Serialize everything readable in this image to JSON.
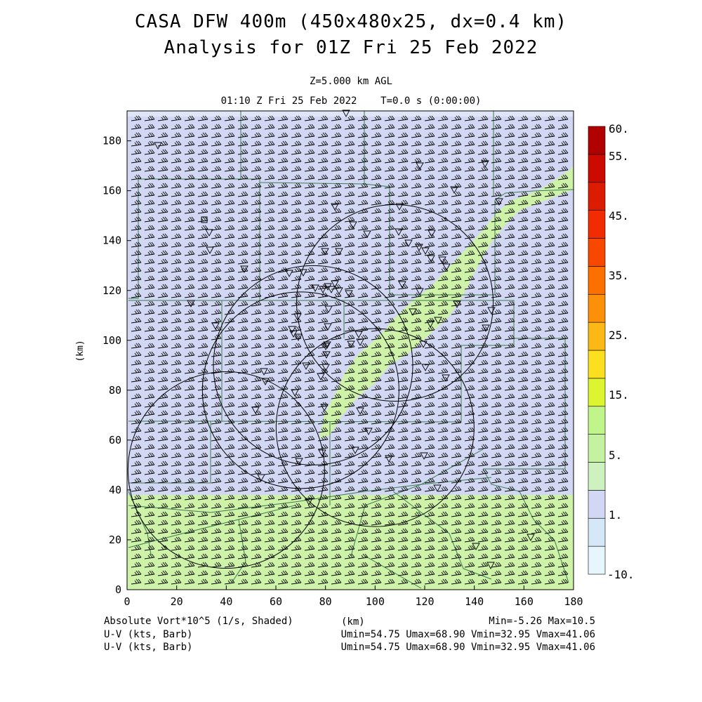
{
  "title_line1": "CASA DFW 400m (450x480x25, dx=0.4 km)",
  "title_line2": "Analysis for 01Z Fri 25 Feb 2022",
  "level_label": "Z=5.000 km AGL",
  "time_label": "01:10 Z Fri 25 Feb 2022    T=0.0 s (0:00:00)",
  "chart_data": {
    "type": "heatmap",
    "xlabel": "(km)",
    "ylabel": "(km)",
    "xlim": [
      0,
      180
    ],
    "ylim": [
      0,
      192
    ],
    "x_ticks": [
      "0",
      "20",
      "40",
      "60",
      "80",
      "100",
      "120",
      "140",
      "160",
      "180"
    ],
    "y_ticks": [
      "0",
      "20",
      "40",
      "60",
      "80",
      "100",
      "120",
      "140",
      "160",
      "180"
    ],
    "colorbar": {
      "labels": [
        "60.",
        "55.",
        "45.",
        "35.",
        "25.",
        "15.",
        "5.",
        "1.",
        "-10."
      ],
      "colors": [
        "#e6f6fc",
        "#d4e8f8",
        "#d2d8f4",
        "#cdf2c0",
        "#c4f2a0",
        "#bff58a",
        "#dcf530",
        "#fce020",
        "#fcb814",
        "#fc9008",
        "#fc7000",
        "#f84800",
        "#f02c00",
        "#dc1c00",
        "#cc0a00",
        "#b00000"
      ]
    },
    "fields": {
      "shaded": "Absolute Vort*10^5 (1/s, Shaded)",
      "barbs_1": "U-V (kts, Barb)",
      "barbs_2": "U-V (kts, Barb)"
    },
    "stats": {
      "min": -5.26,
      "max": 10.5,
      "umin": 54.75,
      "umax": 68.9,
      "vmin": 32.95,
      "vmax": 41.06
    },
    "radar_rings_center_km": [
      [
        108,
        115
      ],
      [
        75,
        90
      ],
      [
        70,
        80
      ],
      [
        100,
        65
      ],
      [
        40,
        48
      ]
    ]
  },
  "footer": {
    "left1": "Absolute Vort*10^5 (1/s, Shaded)",
    "left2": "U-V (kts, Barb)",
    "left3": "U-V (kts, Barb)",
    "center": "(km)",
    "right1": "Min=-5.26 Max=10.5",
    "right2": "Umin=54.75 Umax=68.90 Vmin=32.95 Vmax=41.06",
    "right3": "Umin=54.75 Umax=68.90 Vmin=32.95 Vmax=41.06"
  }
}
